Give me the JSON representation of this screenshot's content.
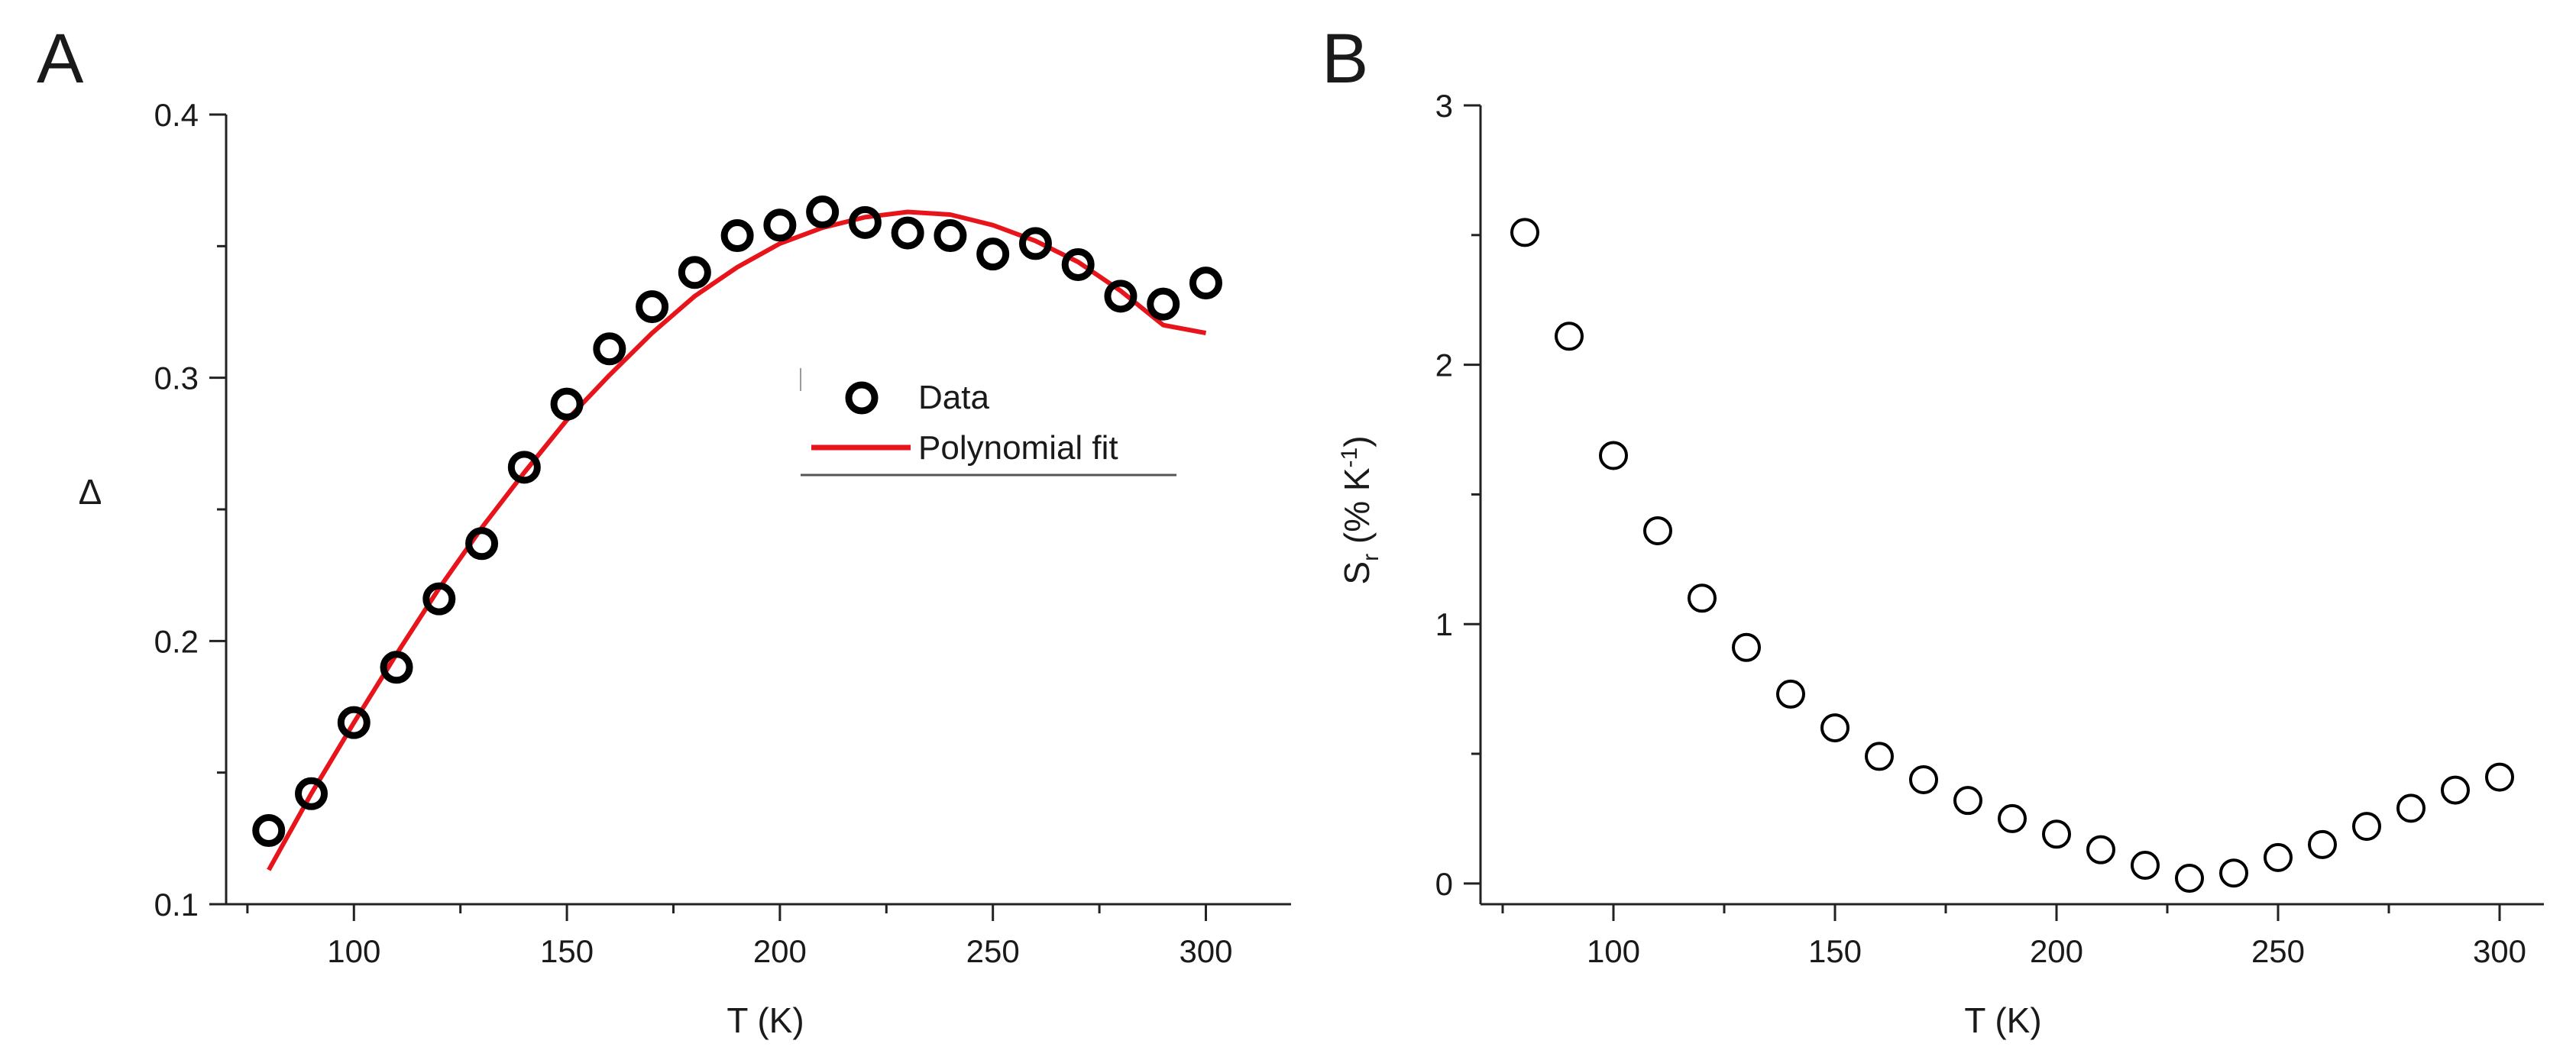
{
  "chart_data": [
    {
      "panel_label": "A",
      "type": "scatter",
      "xlabel": "T (K)",
      "ylabel": "Δ",
      "xlim": [
        70,
        320
      ],
      "ylim": [
        0.1,
        0.4
      ],
      "xticks": [
        100,
        150,
        200,
        250,
        300
      ],
      "xtick_labels": [
        "100",
        "150",
        "200",
        "250",
        "300"
      ],
      "yticks": [
        0.1,
        0.2,
        0.3,
        0.4
      ],
      "ytick_labels": [
        "0.1",
        "0.2",
        "0.3",
        "0.4"
      ],
      "legend_position": "center-right",
      "series": [
        {
          "name": "Data",
          "kind": "scatter",
          "marker": "open-circle-bold",
          "color": "#000000",
          "x": [
            80,
            90,
            100,
            110,
            120,
            130,
            140,
            150,
            160,
            170,
            180,
            190,
            200,
            210,
            220,
            230,
            240,
            250,
            260,
            270,
            280,
            290,
            300
          ],
          "y": [
            0.128,
            0.142,
            0.169,
            0.19,
            0.216,
            0.237,
            0.266,
            0.29,
            0.311,
            0.327,
            0.34,
            0.354,
            0.358,
            0.363,
            0.359,
            0.355,
            0.354,
            0.347,
            0.351,
            0.343,
            0.331,
            0.328,
            0.336
          ]
        },
        {
          "name": "Polynomial fit",
          "kind": "line",
          "color": "#e8141b",
          "x": [
            80,
            90,
            100,
            110,
            120,
            130,
            140,
            150,
            160,
            170,
            180,
            190,
            200,
            210,
            220,
            230,
            240,
            250,
            260,
            270,
            280,
            290,
            300
          ],
          "y": [
            0.113,
            0.142,
            0.169,
            0.195,
            0.22,
            0.243,
            0.264,
            0.284,
            0.301,
            0.317,
            0.331,
            0.342,
            0.351,
            0.357,
            0.361,
            0.363,
            0.362,
            0.358,
            0.352,
            0.344,
            0.333,
            0.32,
            0.317
          ]
        }
      ]
    },
    {
      "panel_label": "B",
      "type": "scatter",
      "xlabel": "T (K)",
      "ylabel_main": "S",
      "ylabel_sub": "r",
      "ylabel_rest": " (% K",
      "ylabel_sup": "-1",
      "ylabel_close": ")",
      "xlim": [
        70,
        310
      ],
      "ylim": [
        -0.08,
        3
      ],
      "xticks": [
        100,
        150,
        200,
        250,
        300
      ],
      "xtick_labels": [
        "100",
        "150",
        "200",
        "250",
        "300"
      ],
      "yticks": [
        0,
        1,
        2,
        3
      ],
      "ytick_labels": [
        "0",
        "1",
        "2",
        "3"
      ],
      "series": [
        {
          "name": "Sr",
          "kind": "scatter",
          "marker": "open-circle",
          "color": "#000000",
          "x": [
            80,
            90,
            100,
            110,
            120,
            130,
            140,
            150,
            160,
            170,
            180,
            190,
            200,
            210,
            220,
            230,
            240,
            250,
            260,
            270,
            280,
            290,
            300
          ],
          "y": [
            2.51,
            2.11,
            1.65,
            1.36,
            1.1,
            0.91,
            0.73,
            0.6,
            0.49,
            0.4,
            0.32,
            0.25,
            0.19,
            0.13,
            0.07,
            0.02,
            0.04,
            0.1,
            0.15,
            0.22,
            0.29,
            0.36,
            0.41
          ]
        }
      ]
    }
  ]
}
